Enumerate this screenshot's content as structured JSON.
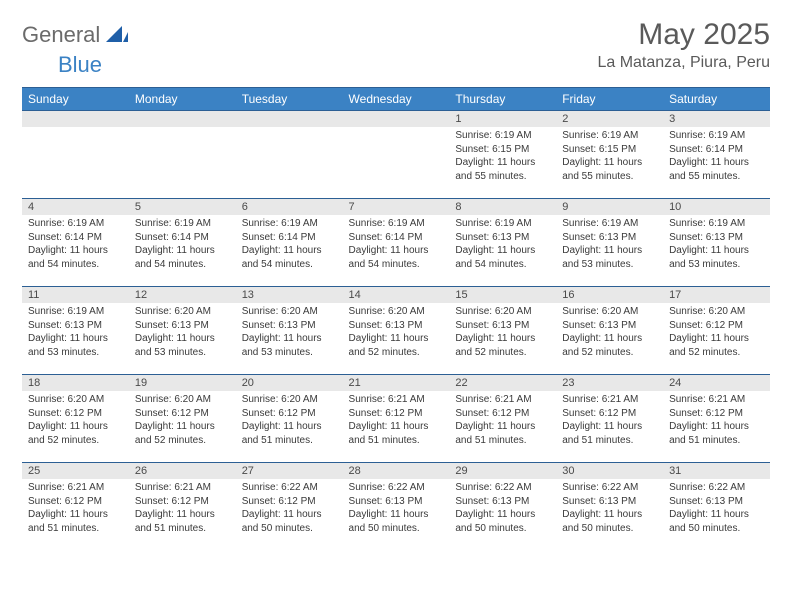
{
  "logo": {
    "word1": "General",
    "word2": "Blue",
    "shape_color": "#1f5fa8"
  },
  "title": "May 2025",
  "location": "La Matanza, Piura, Peru",
  "colors": {
    "header_bg": "#3b82c4",
    "header_text": "#ffffff",
    "border": "#2c5f94",
    "daynum_bg": "#e8e8e8",
    "text": "#3a3a3a"
  },
  "day_headers": [
    "Sunday",
    "Monday",
    "Tuesday",
    "Wednesday",
    "Thursday",
    "Friday",
    "Saturday"
  ],
  "weeks": [
    [
      null,
      null,
      null,
      null,
      {
        "n": "1",
        "sr": "6:19 AM",
        "ss": "6:15 PM",
        "dl": "11 hours and 55 minutes."
      },
      {
        "n": "2",
        "sr": "6:19 AM",
        "ss": "6:15 PM",
        "dl": "11 hours and 55 minutes."
      },
      {
        "n": "3",
        "sr": "6:19 AM",
        "ss": "6:14 PM",
        "dl": "11 hours and 55 minutes."
      }
    ],
    [
      {
        "n": "4",
        "sr": "6:19 AM",
        "ss": "6:14 PM",
        "dl": "11 hours and 54 minutes."
      },
      {
        "n": "5",
        "sr": "6:19 AM",
        "ss": "6:14 PM",
        "dl": "11 hours and 54 minutes."
      },
      {
        "n": "6",
        "sr": "6:19 AM",
        "ss": "6:14 PM",
        "dl": "11 hours and 54 minutes."
      },
      {
        "n": "7",
        "sr": "6:19 AM",
        "ss": "6:14 PM",
        "dl": "11 hours and 54 minutes."
      },
      {
        "n": "8",
        "sr": "6:19 AM",
        "ss": "6:13 PM",
        "dl": "11 hours and 54 minutes."
      },
      {
        "n": "9",
        "sr": "6:19 AM",
        "ss": "6:13 PM",
        "dl": "11 hours and 53 minutes."
      },
      {
        "n": "10",
        "sr": "6:19 AM",
        "ss": "6:13 PM",
        "dl": "11 hours and 53 minutes."
      }
    ],
    [
      {
        "n": "11",
        "sr": "6:19 AM",
        "ss": "6:13 PM",
        "dl": "11 hours and 53 minutes."
      },
      {
        "n": "12",
        "sr": "6:20 AM",
        "ss": "6:13 PM",
        "dl": "11 hours and 53 minutes."
      },
      {
        "n": "13",
        "sr": "6:20 AM",
        "ss": "6:13 PM",
        "dl": "11 hours and 53 minutes."
      },
      {
        "n": "14",
        "sr": "6:20 AM",
        "ss": "6:13 PM",
        "dl": "11 hours and 52 minutes."
      },
      {
        "n": "15",
        "sr": "6:20 AM",
        "ss": "6:13 PM",
        "dl": "11 hours and 52 minutes."
      },
      {
        "n": "16",
        "sr": "6:20 AM",
        "ss": "6:13 PM",
        "dl": "11 hours and 52 minutes."
      },
      {
        "n": "17",
        "sr": "6:20 AM",
        "ss": "6:12 PM",
        "dl": "11 hours and 52 minutes."
      }
    ],
    [
      {
        "n": "18",
        "sr": "6:20 AM",
        "ss": "6:12 PM",
        "dl": "11 hours and 52 minutes."
      },
      {
        "n": "19",
        "sr": "6:20 AM",
        "ss": "6:12 PM",
        "dl": "11 hours and 52 minutes."
      },
      {
        "n": "20",
        "sr": "6:20 AM",
        "ss": "6:12 PM",
        "dl": "11 hours and 51 minutes."
      },
      {
        "n": "21",
        "sr": "6:21 AM",
        "ss": "6:12 PM",
        "dl": "11 hours and 51 minutes."
      },
      {
        "n": "22",
        "sr": "6:21 AM",
        "ss": "6:12 PM",
        "dl": "11 hours and 51 minutes."
      },
      {
        "n": "23",
        "sr": "6:21 AM",
        "ss": "6:12 PM",
        "dl": "11 hours and 51 minutes."
      },
      {
        "n": "24",
        "sr": "6:21 AM",
        "ss": "6:12 PM",
        "dl": "11 hours and 51 minutes."
      }
    ],
    [
      {
        "n": "25",
        "sr": "6:21 AM",
        "ss": "6:12 PM",
        "dl": "11 hours and 51 minutes."
      },
      {
        "n": "26",
        "sr": "6:21 AM",
        "ss": "6:12 PM",
        "dl": "11 hours and 51 minutes."
      },
      {
        "n": "27",
        "sr": "6:22 AM",
        "ss": "6:12 PM",
        "dl": "11 hours and 50 minutes."
      },
      {
        "n": "28",
        "sr": "6:22 AM",
        "ss": "6:13 PM",
        "dl": "11 hours and 50 minutes."
      },
      {
        "n": "29",
        "sr": "6:22 AM",
        "ss": "6:13 PM",
        "dl": "11 hours and 50 minutes."
      },
      {
        "n": "30",
        "sr": "6:22 AM",
        "ss": "6:13 PM",
        "dl": "11 hours and 50 minutes."
      },
      {
        "n": "31",
        "sr": "6:22 AM",
        "ss": "6:13 PM",
        "dl": "11 hours and 50 minutes."
      }
    ]
  ],
  "labels": {
    "sunrise": "Sunrise: ",
    "sunset": "Sunset: ",
    "daylight": "Daylight: "
  }
}
